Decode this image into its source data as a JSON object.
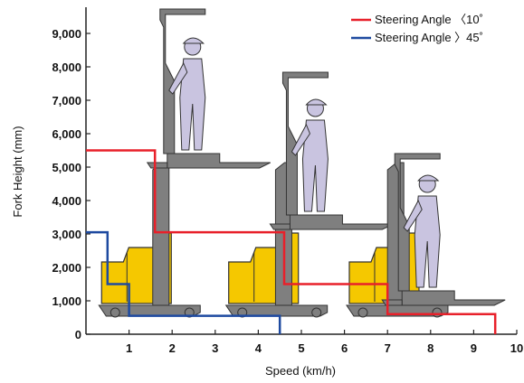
{
  "chart_data": {
    "type": "line",
    "xlabel": "Speed (km/h)",
    "ylabel": "Fork Height (mm)",
    "xlim": [
      0,
      10
    ],
    "ylim": [
      0,
      10000
    ],
    "x_ticks": [
      "1",
      "2",
      "3",
      "4",
      "5",
      "6",
      "7",
      "8",
      "9",
      "10"
    ],
    "y_ticks": [
      "0",
      "1,000",
      "2,000",
      "3,000",
      "4,000",
      "5,000",
      "6,000",
      "7,000",
      "8,000",
      "9,000"
    ],
    "legend_position": "top-right",
    "series": [
      {
        "name": "Steering Angle 〈10˚",
        "color": "#e8202a",
        "x": [
          0,
          1.6,
          1.6,
          4.6,
          4.6,
          7.0,
          7.0,
          9.5,
          9.5
        ],
        "y": [
          5500,
          5500,
          3050,
          3050,
          1500,
          1500,
          600,
          600,
          0
        ]
      },
      {
        "name": "Steering Angle 〉45˚",
        "color": "#1e4aa0",
        "x": [
          0,
          0.5,
          0.5,
          1.0,
          1.0,
          4.5,
          4.5
        ],
        "y": [
          3050,
          3050,
          1500,
          1500,
          550,
          550,
          0
        ]
      }
    ]
  },
  "illustration": {
    "truck_body_color": "#f5c800",
    "mast_color": "#7f7f7f",
    "operator_color": "#c9c4e0"
  }
}
